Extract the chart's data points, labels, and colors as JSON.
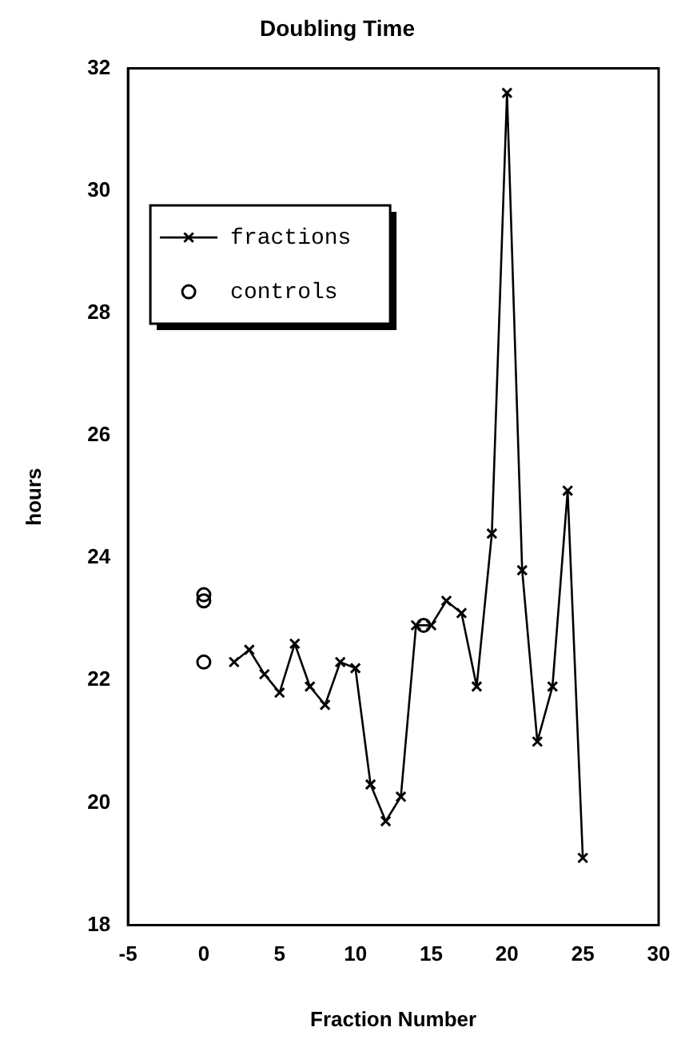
{
  "chart_data": {
    "type": "line",
    "title": "Doubling Time",
    "xlabel": "Fraction Number",
    "ylabel": "hours",
    "xlim": [
      -5,
      30
    ],
    "xticks": [
      -5,
      0,
      5,
      10,
      15,
      20,
      25,
      30
    ],
    "ylim": [
      18,
      32
    ],
    "yticks": [
      18,
      20,
      22,
      24,
      26,
      28,
      30,
      32
    ],
    "grid": false,
    "legend": "top left",
    "series": [
      {
        "name": "fractions",
        "color": "#000000",
        "marker": "cross",
        "x": [
          2,
          3,
          4,
          5,
          6,
          7,
          8,
          9,
          10,
          11,
          12,
          13,
          14,
          15,
          16,
          17,
          18,
          19,
          20,
          21,
          22,
          23,
          24,
          25
        ],
        "values": [
          22.3,
          22.5,
          22.1,
          21.8,
          22.6,
          21.9,
          21.6,
          22.3,
          22.2,
          20.3,
          19.7,
          20.1,
          22.9,
          22.9,
          23.3,
          23.1,
          21.9,
          24.4,
          31.6,
          23.8,
          21.0,
          21.9,
          25.1,
          19.1
        ]
      },
      {
        "name": "controls",
        "type": "scatter",
        "color": "#000000",
        "marker": "circle",
        "x": [
          0,
          0,
          0,
          14.5
        ],
        "values": [
          22.3,
          23.3,
          23.4,
          22.9
        ]
      }
    ]
  }
}
